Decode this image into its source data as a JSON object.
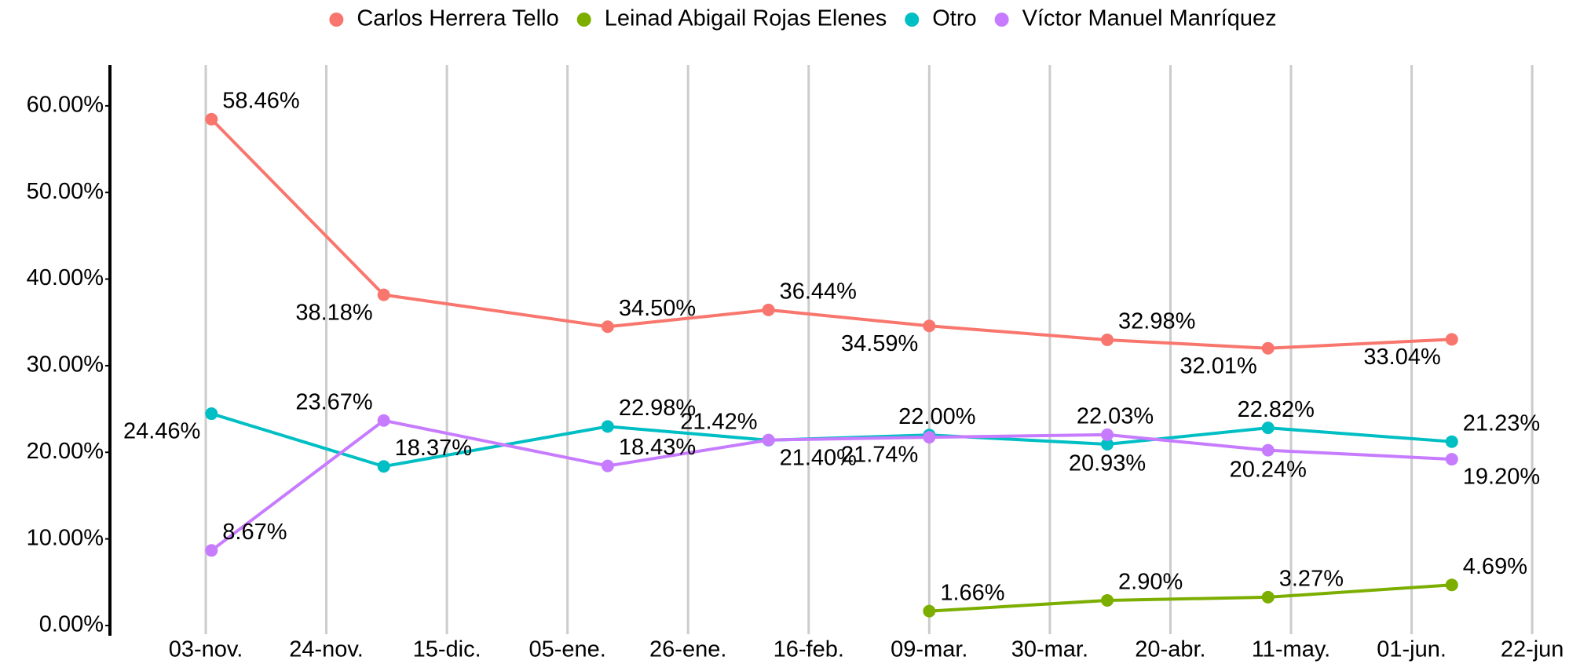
{
  "chart_data": {
    "type": "line",
    "x": [
      "11-04",
      "12-04",
      "01-12",
      "02-09",
      "03-09",
      "04-09",
      "05-07",
      "06-08"
    ],
    "xlim": [
      "10-18",
      "06-28"
    ],
    "xticks": [
      {
        "value": "11-03",
        "label": "03-nov."
      },
      {
        "value": "11-24",
        "label": "24-nov."
      },
      {
        "value": "12-15",
        "label": "15-dic."
      },
      {
        "value": "01-05",
        "label": "05-ene."
      },
      {
        "value": "01-26",
        "label": "26-ene."
      },
      {
        "value": "02-16",
        "label": "16-feb."
      },
      {
        "value": "03-09",
        "label": "09-mar."
      },
      {
        "value": "03-30",
        "label": "30-mar."
      },
      {
        "value": "04-20",
        "label": "20-abr."
      },
      {
        "value": "05-11",
        "label": "11-may."
      },
      {
        "value": "06-01",
        "label": "01-jun."
      },
      {
        "value": "06-22",
        "label": "22-jun"
      }
    ],
    "ylim": [
      -1,
      64.7
    ],
    "yticks": [
      {
        "value": 0,
        "label": "0.00%"
      },
      {
        "value": 10,
        "label": "10.00%"
      },
      {
        "value": 20,
        "label": "20.00%"
      },
      {
        "value": 30,
        "label": "30.00%"
      },
      {
        "value": 40,
        "label": "40.00%"
      },
      {
        "value": 50,
        "label": "50.00%"
      },
      {
        "value": 60,
        "label": "60.00%"
      }
    ],
    "grid": "x",
    "legend": "top",
    "series": [
      {
        "name": "Carlos Herrera Tello",
        "color": "#F8766D",
        "values": [
          58.46,
          38.18,
          34.5,
          36.44,
          34.59,
          32.98,
          32.01,
          33.04
        ],
        "value_labels": [
          "58.46%",
          "38.18%",
          "34.50%",
          "36.44%",
          "34.59%",
          "32.98%",
          "32.01%",
          "33.04%"
        ]
      },
      {
        "name": "Leinad Abigail Rojas Elenes",
        "color": "#7CAE00",
        "values": [
          null,
          null,
          null,
          null,
          1.66,
          2.9,
          3.27,
          4.69
        ],
        "value_labels": [
          null,
          null,
          null,
          null,
          "1.66%",
          "2.90%",
          "3.27%",
          "4.69%"
        ]
      },
      {
        "name": "Otro",
        "color": "#00BFC4",
        "values": [
          24.46,
          18.37,
          22.98,
          21.4,
          22.0,
          20.93,
          22.82,
          21.23
        ],
        "value_labels": [
          "24.46%",
          "18.37%",
          "22.98%",
          "21.40%",
          "22.00%",
          "20.93%",
          "22.82%",
          "21.23%"
        ]
      },
      {
        "name": "Víctor Manuel Manríquez",
        "color": "#C77CFF",
        "values": [
          8.67,
          23.67,
          18.43,
          21.42,
          21.74,
          22.03,
          20.24,
          19.2
        ],
        "value_labels": [
          "8.67%",
          "23.67%",
          "18.43%",
          "21.42%",
          "21.74%",
          "22.03%",
          "20.24%",
          "19.20%"
        ]
      }
    ]
  }
}
